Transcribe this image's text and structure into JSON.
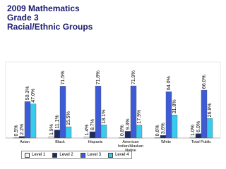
{
  "chart_data": {
    "type": "bar",
    "title": "2009 Mathematics\nGrade 3\nRacial/Ethnic Groups",
    "categories": [
      "Asian",
      "Black",
      "Hispanic",
      "American Indian/Alaskan Native",
      "White",
      "Total Public"
    ],
    "series": [
      {
        "name": "Level 1",
        "color": "#f4f4f4",
        "values": [
          0.5,
          1.9,
          1.4,
          0.8,
          0.6,
          1.0
        ],
        "value_labels": [
          "0.5%",
          "1.9%",
          "1.4%",
          "0.8%",
          "0.6%",
          "1.0%"
        ]
      },
      {
        "name": "Level 2",
        "color": "#1c2a66",
        "values": [
          2.2,
          11.1,
          8.7,
          9.3,
          3.6,
          6.0
        ],
        "value_labels": [
          "2.2%",
          "11.1%",
          "8.7%",
          "9.3%",
          "3.6%",
          "6.0%"
        ]
      },
      {
        "name": "Level 3",
        "color": "#3d5bd6",
        "values": [
          50.3,
          71.5,
          71.8,
          71.9,
          64.0,
          66.0
        ],
        "value_labels": [
          "50.3%",
          "71.5%",
          "71.8%",
          "71.9%",
          "64.0%",
          "66.0%"
        ]
      },
      {
        "name": "Level 4",
        "color": "#38cbef",
        "values": [
          47.0,
          15.5,
          18.1,
          17.9,
          31.8,
          26.9
        ],
        "value_labels": [
          "47.0%",
          "15.5%",
          "18.1%",
          "17.9%",
          "31.8%",
          "26.9%"
        ]
      }
    ],
    "legend": "bottom"
  }
}
